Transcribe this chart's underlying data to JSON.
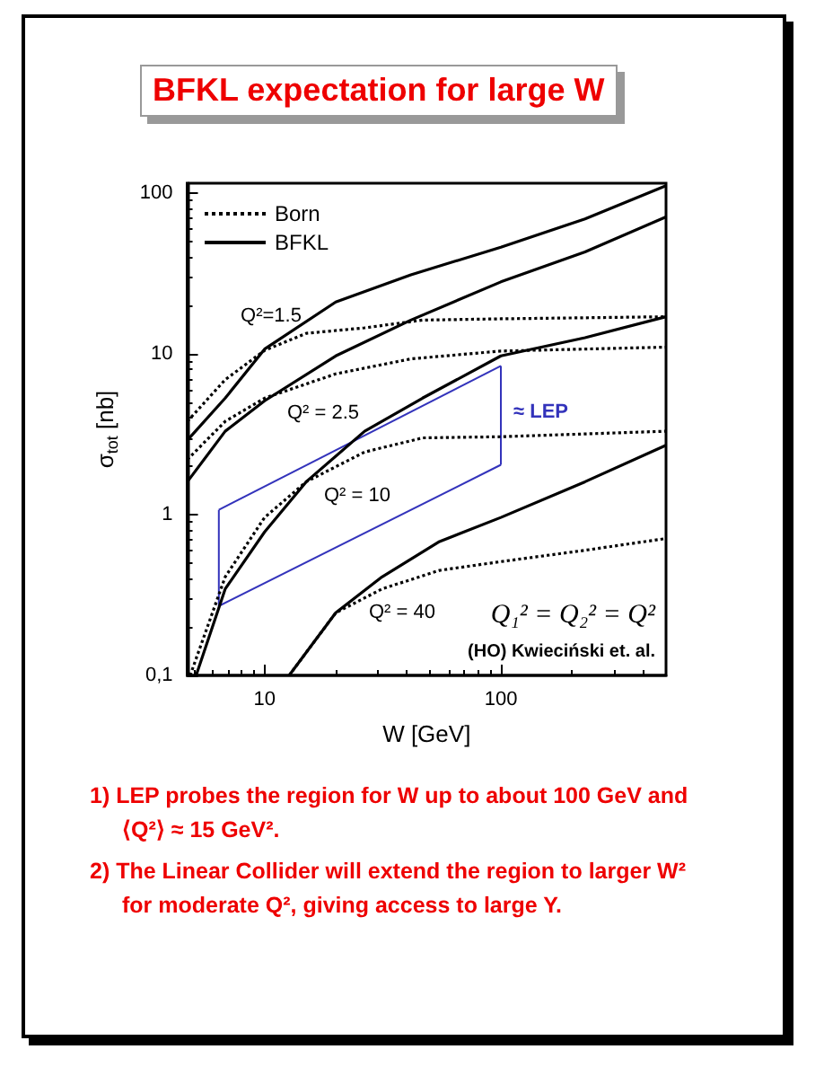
{
  "chart_data": {
    "type": "line",
    "title": "BFKL expectation for large W",
    "xlabel": "W [GeV]",
    "ylabel": "σ$_{tot}$ [nb]",
    "log": "xy",
    "xlim": [
      4.7,
      500
    ],
    "ylim": [
      0.1,
      115
    ],
    "xticks": [
      10,
      100
    ],
    "yticks": [
      {
        "value": 0.1,
        "label": "0,1"
      },
      1,
      10,
      100
    ],
    "grid": false,
    "legend": "top left",
    "marker": "none",
    "series": [
      {
        "name": "Born",
        "color": "#000000",
        "line_style": "dotted",
        "x": [
          4.71,
          6.81,
          10,
          15,
          26.5,
          46.6,
          100,
          500
        ],
        "values": [
          3.8,
          6.9,
          10.5,
          13.4,
          14.5,
          16.2,
          16.5,
          17
        ]
      },
      {
        "name": "BFKL",
        "color": "#000000",
        "line_style": "solid",
        "x": [
          4.71,
          6.81,
          10,
          20,
          41.6,
          100,
          227,
          500
        ],
        "values": [
          2.9,
          5.3,
          10.7,
          21,
          31,
          46,
          69,
          111
        ]
      },
      {
        "color": "#000000",
        "line_style": "dotted",
        "x": [
          4.71,
          6.81,
          10,
          20,
          41.6,
          100,
          500
        ],
        "values": [
          2.2,
          3.8,
          5.3,
          7.5,
          9.3,
          10.4,
          11
        ]
      },
      {
        "color": "#000000",
        "line_style": "solid",
        "x": [
          4.71,
          6.81,
          10,
          20,
          41.6,
          100,
          227,
          500
        ],
        "values": [
          1.6,
          3.3,
          5.1,
          9.7,
          16.2,
          28,
          43,
          71
        ]
      },
      {
        "color": "#000000",
        "line_style": "dotted",
        "x": [
          4.84,
          6.81,
          10,
          15,
          26.5,
          46.6,
          100,
          500
        ],
        "values": [
          0.1,
          0.41,
          0.96,
          1.6,
          2.45,
          3.0,
          3.05,
          3.3
        ]
      },
      {
        "color": "#000000",
        "line_style": "solid",
        "x": [
          5.13,
          6.81,
          10,
          15,
          26.5,
          46.6,
          100,
          227,
          500
        ],
        "values": [
          0.1,
          0.345,
          0.78,
          1.6,
          3.3,
          5.3,
          9.7,
          12.6,
          17
        ]
      },
      {
        "color": "#000000",
        "line_style": "dotted",
        "x": [
          12.7,
          20,
          31.4,
          55,
          100,
          227,
          500
        ],
        "values": [
          0.1,
          0.245,
          0.345,
          0.45,
          0.51,
          0.6,
          0.71
        ]
      },
      {
        "color": "#000000",
        "line_style": "solid",
        "x": [
          12.7,
          20,
          31.4,
          55,
          100,
          227,
          500
        ],
        "values": [
          0.1,
          0.245,
          0.41,
          0.68,
          0.96,
          1.6,
          2.7
        ]
      },
      {
        "name": "≈ LEP",
        "color": "#3333bb",
        "x": [
          6.4,
          100
        ],
        "values": [
          1.07,
          8.4
        ]
      },
      {
        "color": "#3333bb",
        "x": [
          6.4,
          100
        ],
        "values": [
          0.27,
          2.04
        ]
      },
      {
        "color": "#3333bb",
        "x": [
          6.4,
          6.4
        ],
        "values": [
          0.27,
          1.07
        ]
      },
      {
        "color": "#3333bb",
        "x": [
          100,
          100
        ],
        "values": [
          2.04,
          8.4
        ]
      }
    ],
    "annotations": [
      "Q₁² = Q₂² = Q²",
      "(HO) Kwieciński et. al.",
      "1) LEP probes the region for W up to about 100 GeV and ⟨Q²⟩ ≈ 15 GeV².",
      "2) The Linear Collider will extend the region to larger W² for moderate Q², giving access to large Y.",
      "Q²=1.5",
      "Q² = 2.5",
      "Q² = 10",
      "Q² = 40"
    ]
  }
}
